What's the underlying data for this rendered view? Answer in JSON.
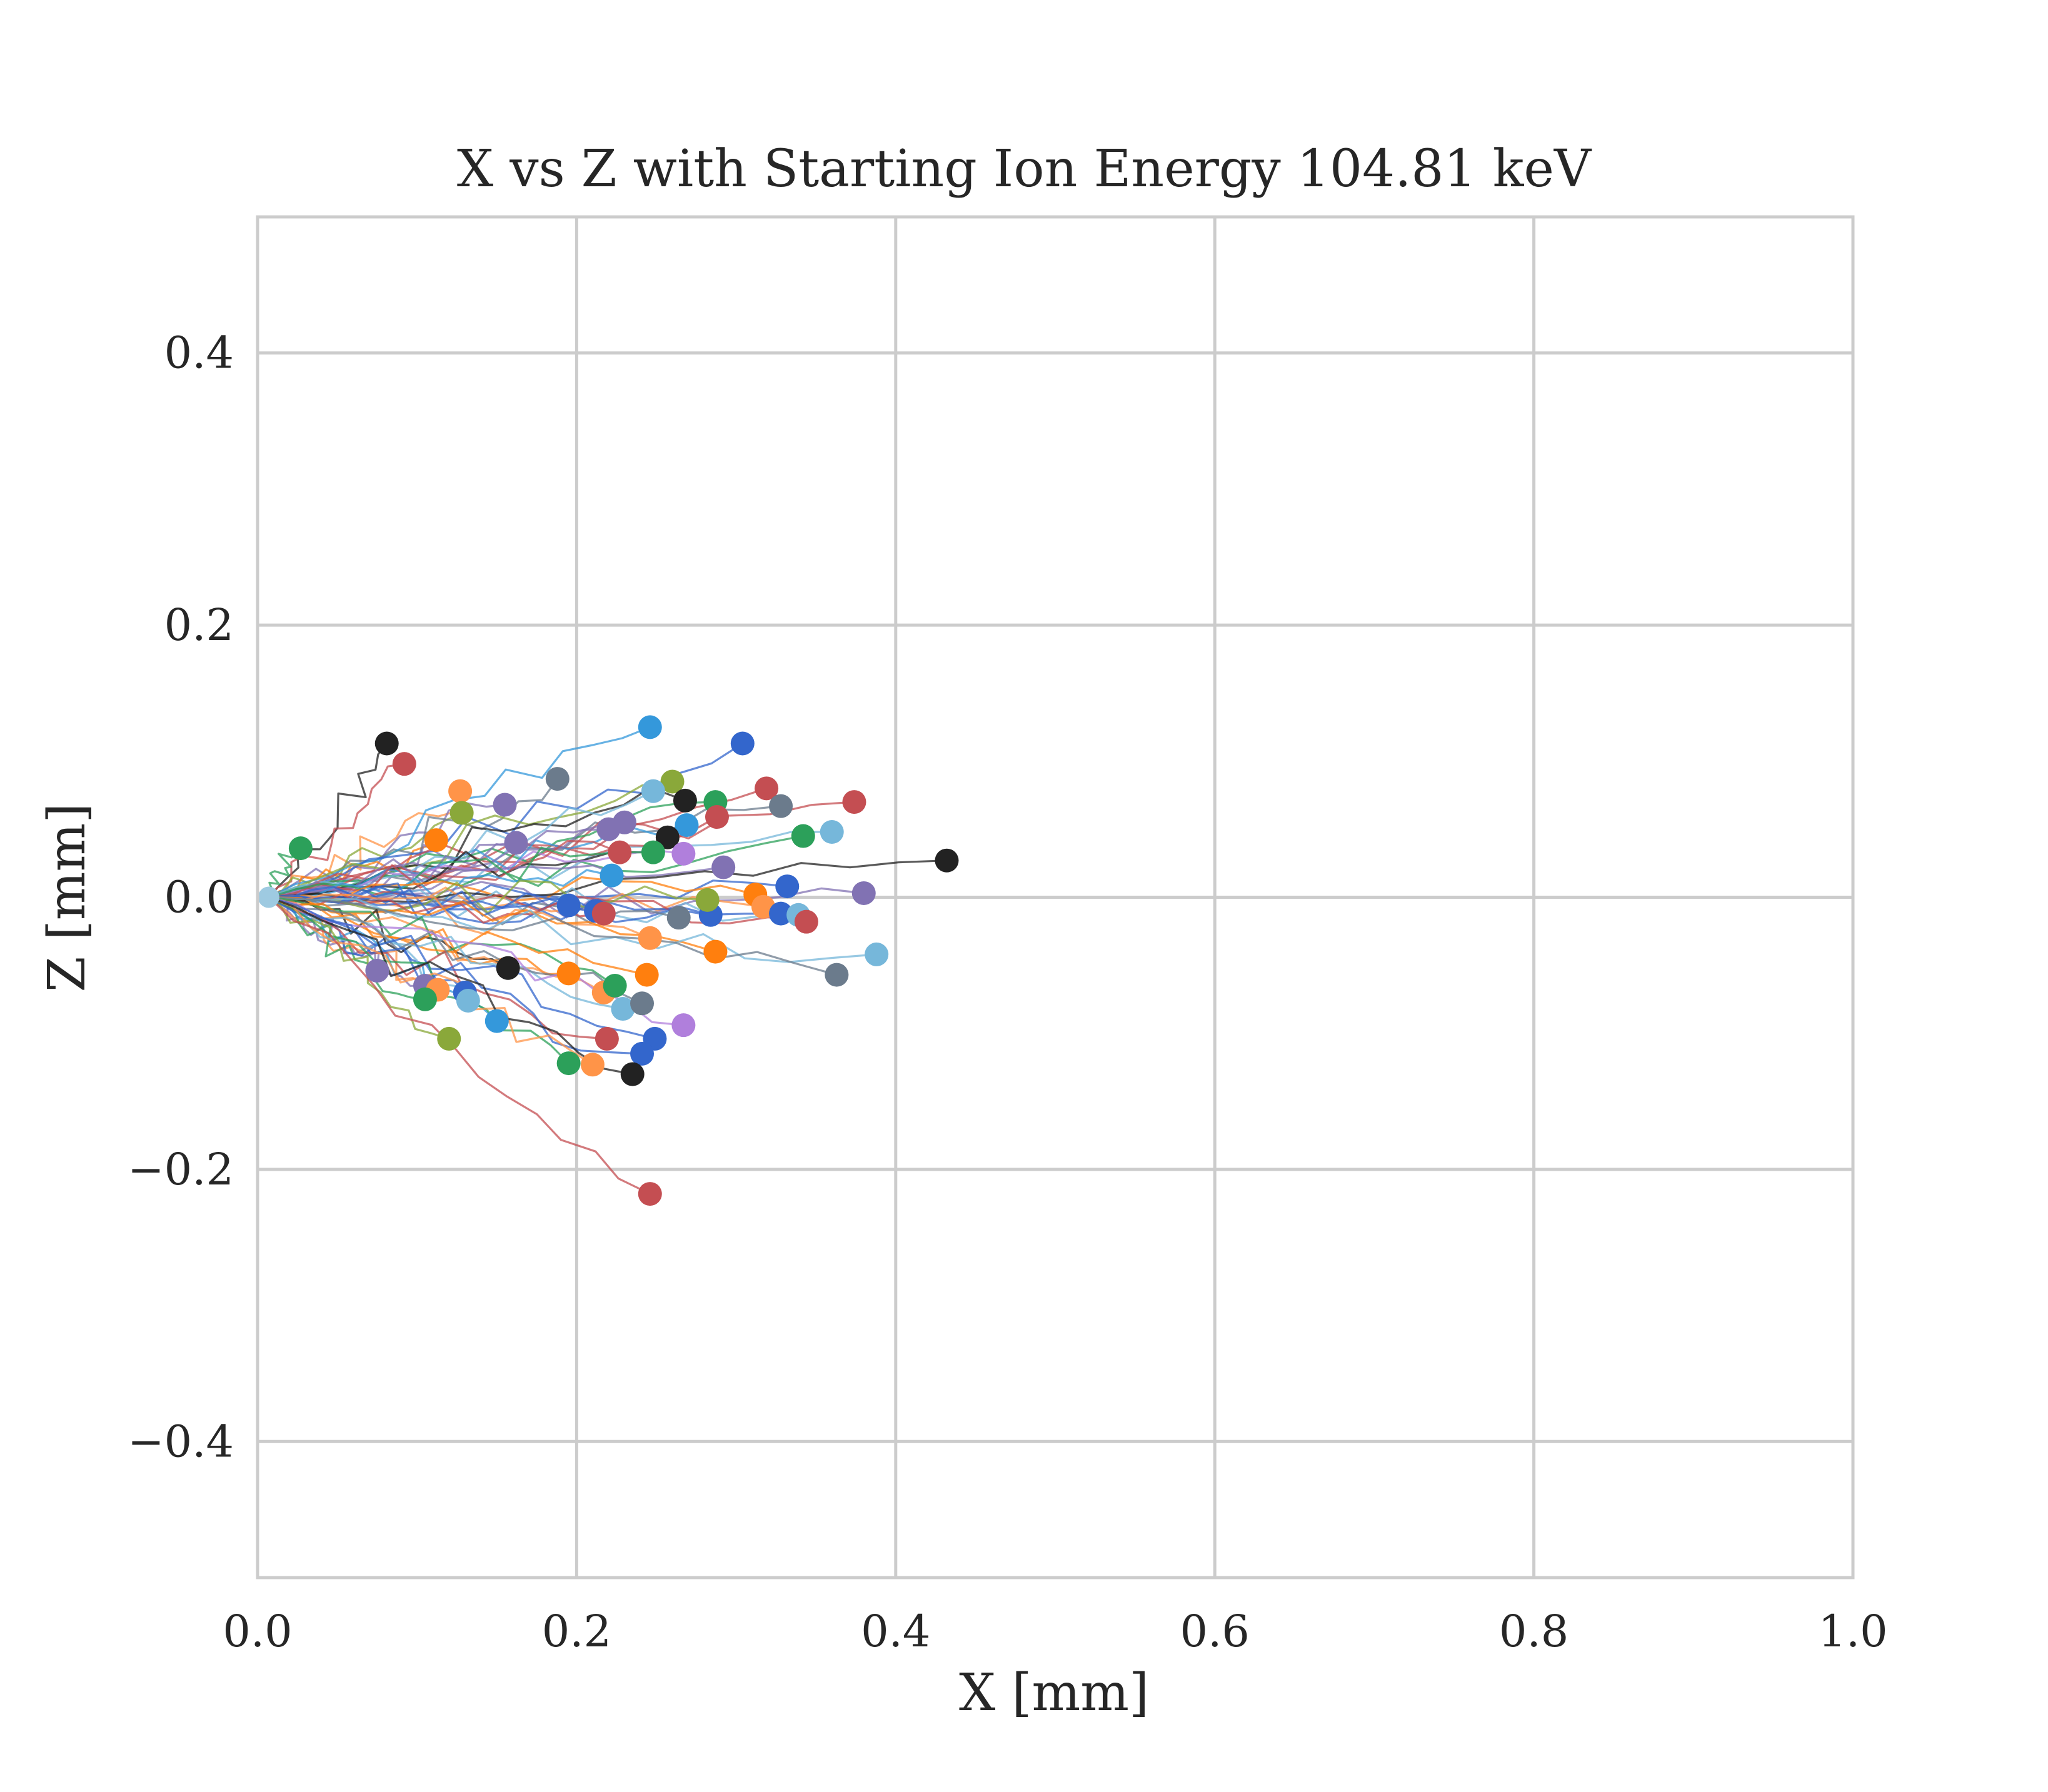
{
  "chart_data": {
    "type": "line",
    "title": "X vs Z with Starting Ion Energy 104.81 keV",
    "xlabel": "X [mm]",
    "ylabel": "Z [mm]",
    "xlim": [
      0.0,
      1.0
    ],
    "ylim": [
      -0.5,
      0.5
    ],
    "xticks": [
      0.0,
      0.2,
      0.4,
      0.6,
      0.8,
      1.0
    ],
    "xtick_labels": [
      "0.0",
      "0.2",
      "0.4",
      "0.6",
      "0.8",
      "1.0"
    ],
    "yticks": [
      -0.4,
      -0.2,
      0.0,
      0.2,
      0.4
    ],
    "ytick_labels": [
      "−0.4",
      "−0.2",
      "0.0",
      "0.2",
      "0.4"
    ],
    "grid": true,
    "legend": "none",
    "start_point": [
      0.007,
      0.0
    ],
    "end_points": [
      {
        "x": 0.081,
        "y": 0.113,
        "color": "#222222"
      },
      {
        "x": 0.092,
        "y": 0.098,
        "color": "#c44e52"
      },
      {
        "x": 0.027,
        "y": 0.036,
        "color": "#2ca05a"
      },
      {
        "x": 0.127,
        "y": 0.078,
        "color": "#ff9448"
      },
      {
        "x": 0.128,
        "y": 0.062,
        "color": "#8aa83a"
      },
      {
        "x": 0.155,
        "y": 0.068,
        "color": "#8172b3"
      },
      {
        "x": 0.112,
        "y": 0.042,
        "color": "#ff7f0e"
      },
      {
        "x": 0.162,
        "y": 0.04,
        "color": "#8172b3"
      },
      {
        "x": 0.188,
        "y": 0.087,
        "color": "#6b7b8c"
      },
      {
        "x": 0.246,
        "y": 0.125,
        "color": "#3498db"
      },
      {
        "x": 0.304,
        "y": 0.113,
        "color": "#3366cc"
      },
      {
        "x": 0.319,
        "y": 0.08,
        "color": "#c44e52"
      },
      {
        "x": 0.328,
        "y": 0.067,
        "color": "#6b7b8c"
      },
      {
        "x": 0.374,
        "y": 0.07,
        "color": "#c44e52"
      },
      {
        "x": 0.36,
        "y": 0.048,
        "color": "#76b7da"
      },
      {
        "x": 0.342,
        "y": 0.045,
        "color": "#2ca05a"
      },
      {
        "x": 0.26,
        "y": 0.085,
        "color": "#8aa83a"
      },
      {
        "x": 0.268,
        "y": 0.071,
        "color": "#222222"
      },
      {
        "x": 0.287,
        "y": 0.07,
        "color": "#2ca05a"
      },
      {
        "x": 0.288,
        "y": 0.059,
        "color": "#c44e52"
      },
      {
        "x": 0.269,
        "y": 0.053,
        "color": "#3498db"
      },
      {
        "x": 0.248,
        "y": 0.078,
        "color": "#76b7da"
      },
      {
        "x": 0.23,
        "y": 0.055,
        "color": "#8172b3"
      },
      {
        "x": 0.22,
        "y": 0.05,
        "color": "#8172b3"
      },
      {
        "x": 0.257,
        "y": 0.044,
        "color": "#222222"
      },
      {
        "x": 0.267,
        "y": 0.032,
        "color": "#b07fdc"
      },
      {
        "x": 0.292,
        "y": 0.022,
        "color": "#8172b3"
      },
      {
        "x": 0.227,
        "y": 0.033,
        "color": "#c44e52"
      },
      {
        "x": 0.248,
        "y": 0.033,
        "color": "#2ca05a"
      },
      {
        "x": 0.222,
        "y": 0.016,
        "color": "#3498db"
      },
      {
        "x": 0.332,
        "y": 0.008,
        "color": "#3366cc"
      },
      {
        "x": 0.312,
        "y": 0.002,
        "color": "#ff7f0e"
      },
      {
        "x": 0.432,
        "y": 0.027,
        "color": "#222222"
      },
      {
        "x": 0.38,
        "y": 0.003,
        "color": "#8172b3"
      },
      {
        "x": 0.317,
        "y": -0.007,
        "color": "#ff9448"
      },
      {
        "x": 0.328,
        "y": -0.012,
        "color": "#3366cc"
      },
      {
        "x": 0.339,
        "y": -0.013,
        "color": "#76b7da"
      },
      {
        "x": 0.344,
        "y": -0.018,
        "color": "#c44e52"
      },
      {
        "x": 0.284,
        "y": -0.013,
        "color": "#3366cc"
      },
      {
        "x": 0.264,
        "y": -0.015,
        "color": "#6b7b8c"
      },
      {
        "x": 0.282,
        "y": -0.002,
        "color": "#8aa83a"
      },
      {
        "x": 0.195,
        "y": -0.006,
        "color": "#3366cc"
      },
      {
        "x": 0.212,
        "y": -0.01,
        "color": "#3366cc"
      },
      {
        "x": 0.217,
        "y": -0.012,
        "color": "#c44e52"
      },
      {
        "x": 0.246,
        "y": -0.03,
        "color": "#ff9448"
      },
      {
        "x": 0.287,
        "y": -0.04,
        "color": "#ff7f0e"
      },
      {
        "x": 0.388,
        "y": -0.042,
        "color": "#76b7da"
      },
      {
        "x": 0.363,
        "y": -0.057,
        "color": "#6b7b8c"
      },
      {
        "x": 0.075,
        "y": -0.054,
        "color": "#8172b3"
      },
      {
        "x": 0.105,
        "y": -0.065,
        "color": "#8172b3"
      },
      {
        "x": 0.113,
        "y": -0.068,
        "color": "#ff9448"
      },
      {
        "x": 0.105,
        "y": -0.075,
        "color": "#2ca05a"
      },
      {
        "x": 0.13,
        "y": -0.07,
        "color": "#3366cc"
      },
      {
        "x": 0.132,
        "y": -0.076,
        "color": "#76b7da"
      },
      {
        "x": 0.157,
        "y": -0.052,
        "color": "#222222"
      },
      {
        "x": 0.15,
        "y": -0.091,
        "color": "#3498db"
      },
      {
        "x": 0.12,
        "y": -0.104,
        "color": "#8aa83a"
      },
      {
        "x": 0.195,
        "y": -0.056,
        "color": "#ff7f0e"
      },
      {
        "x": 0.217,
        "y": -0.07,
        "color": "#ff9448"
      },
      {
        "x": 0.224,
        "y": -0.065,
        "color": "#2ca05a"
      },
      {
        "x": 0.244,
        "y": -0.057,
        "color": "#ff7f0e"
      },
      {
        "x": 0.229,
        "y": -0.082,
        "color": "#76b7da"
      },
      {
        "x": 0.241,
        "y": -0.078,
        "color": "#6b7b8c"
      },
      {
        "x": 0.267,
        "y": -0.094,
        "color": "#b07fdc"
      },
      {
        "x": 0.219,
        "y": -0.104,
        "color": "#c44e52"
      },
      {
        "x": 0.249,
        "y": -0.104,
        "color": "#3366cc"
      },
      {
        "x": 0.241,
        "y": -0.115,
        "color": "#3366cc"
      },
      {
        "x": 0.195,
        "y": -0.122,
        "color": "#2ca05a"
      },
      {
        "x": 0.21,
        "y": -0.123,
        "color": "#ff9448"
      },
      {
        "x": 0.235,
        "y": -0.13,
        "color": "#222222"
      },
      {
        "x": 0.246,
        "y": -0.218,
        "color": "#c44e52"
      }
    ]
  }
}
